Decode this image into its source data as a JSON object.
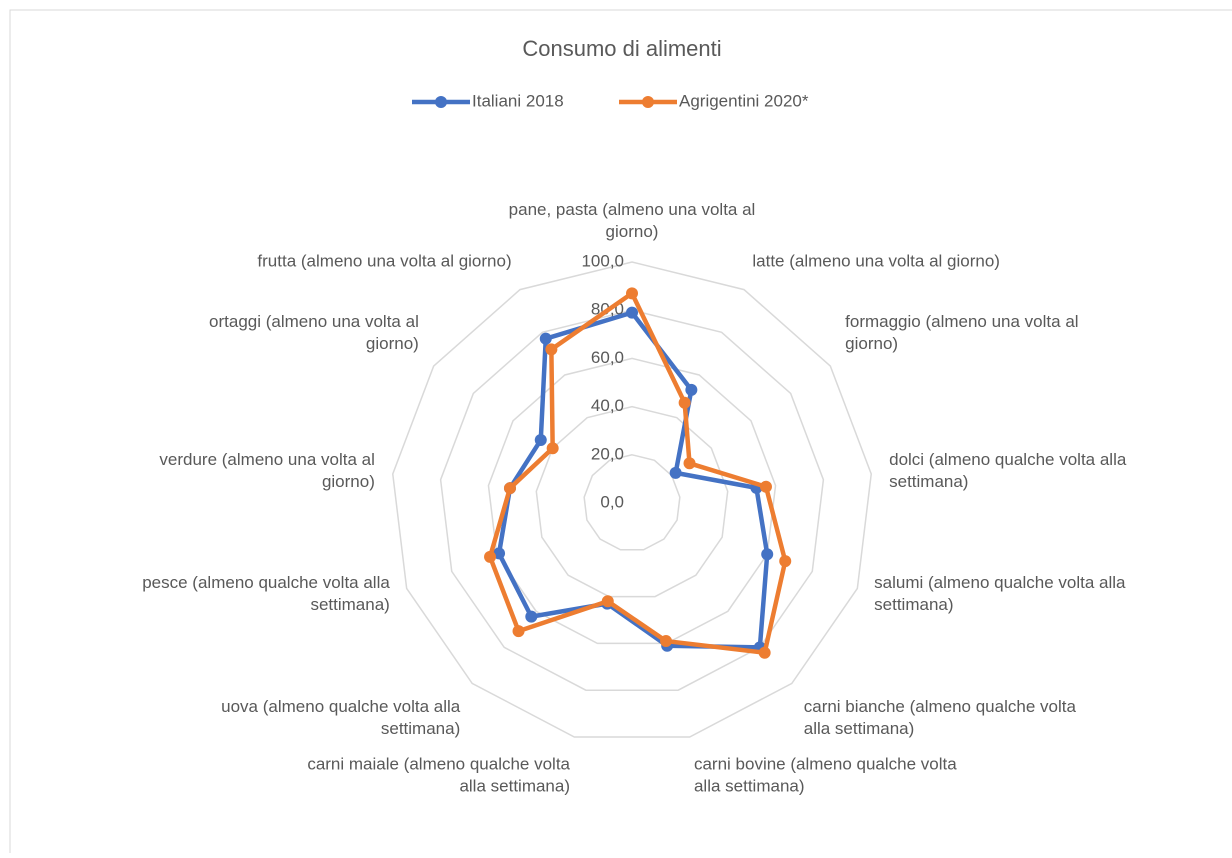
{
  "chart_data": {
    "type": "radar",
    "title": "Consumo di alimenti",
    "categories": [
      "pane, pasta (almeno una volta al giorno)",
      "latte (almeno una volta al giorno)",
      "formaggio (almeno una volta al giorno)",
      "dolci (almeno qualche volta alla settimana)",
      "salumi (almeno qualche volta alla settimana)",
      "carni bianche (almeno qualche volta alla settimana)",
      "carni bovine (almeno qualche volta alla settimana)",
      "carni maiale (almeno qualche volta alla settimana)",
      "uova (almeno qualche volta alla settimana)",
      "pesce (almeno qualche volta alla settimana)",
      "verdure (almeno una volta al giorno)",
      "ortaggi (almeno una volta al giorno)",
      "frutta (almeno una volta al giorno)"
    ],
    "series": [
      {
        "name": "Italiani 2018",
        "color": "#4472c4",
        "values": [
          79,
          53,
          22,
          52,
          60,
          80,
          61,
          43,
          63,
          59,
          51,
          46,
          77
        ]
      },
      {
        "name": "Agrigentini 2020*",
        "color": "#ed7d31",
        "values": [
          87,
          47,
          29,
          56,
          68,
          83,
          59,
          42,
          71,
          63,
          51,
          40,
          72
        ]
      }
    ],
    "ylim": [
      0,
      100
    ],
    "yticks": [
      {
        "value": 0,
        "label": "0,0"
      },
      {
        "value": 20,
        "label": "20,0"
      },
      {
        "value": 40,
        "label": "40,0"
      },
      {
        "value": 60,
        "label": "60,0"
      },
      {
        "value": 80,
        "label": "80,0"
      },
      {
        "value": 100,
        "label": "100,0"
      }
    ],
    "grid": true,
    "legend": "top"
  }
}
